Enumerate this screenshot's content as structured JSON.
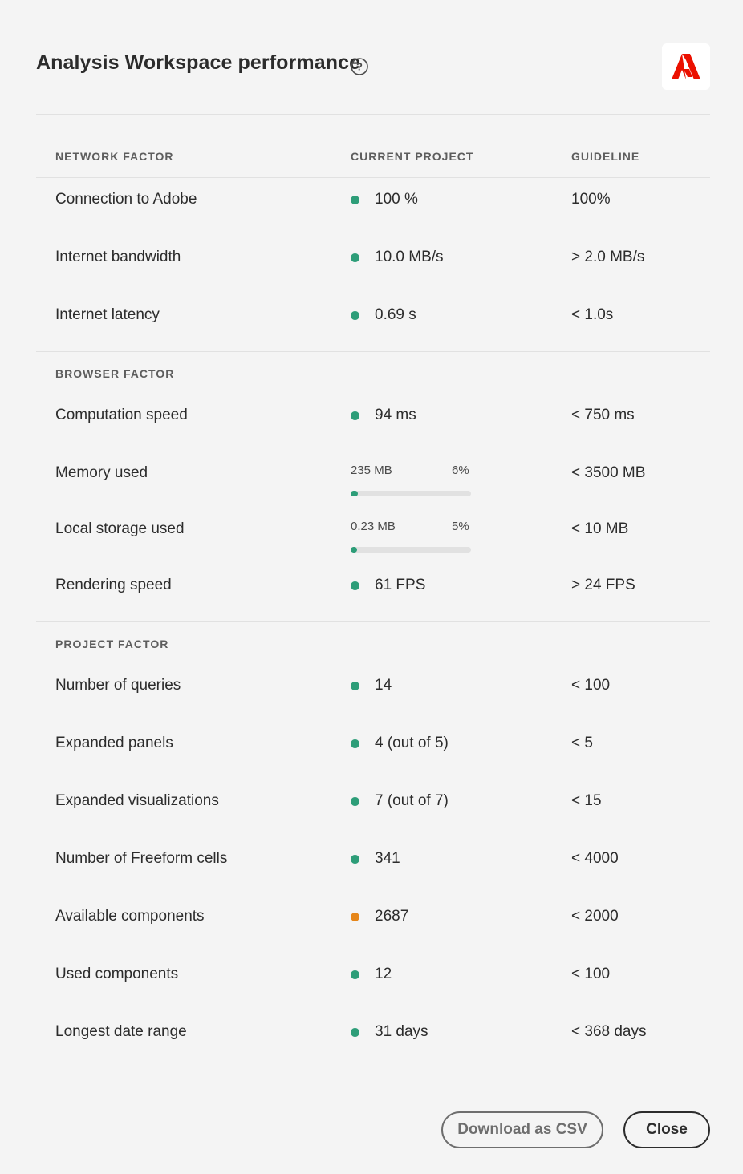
{
  "dialog": {
    "title": "Analysis Workspace performance",
    "help_icon": "question-circle-icon",
    "logo": "adobe-logo",
    "brand_color": "#eb1000"
  },
  "columns": {
    "factor": "NETWORK FACTOR",
    "current": "CURRENT PROJECT",
    "guideline": "GUIDELINE"
  },
  "status_colors": {
    "good": "#2d9d78",
    "warning": "#e68619"
  },
  "network": {
    "rows": [
      {
        "name": "Connection to Adobe",
        "value": "100 %",
        "status": "good",
        "guideline": "100%"
      },
      {
        "name": "Internet bandwidth",
        "value": "10.0 MB/s",
        "status": "good",
        "guideline": "> 2.0 MB/s"
      },
      {
        "name": "Internet latency",
        "value": "0.69 s",
        "status": "good",
        "guideline": "< 1.0s"
      }
    ]
  },
  "browser": {
    "title": "BROWSER FACTOR",
    "computation": {
      "name": "Computation speed",
      "value": "94 ms",
      "status": "good",
      "guideline": "< 750 ms"
    },
    "memory": {
      "name": "Memory used",
      "amount": "235 MB",
      "percent_label": "6%",
      "percent": 6,
      "guideline": "< 3500 MB"
    },
    "storage": {
      "name": "Local storage used",
      "amount": "0.23 MB",
      "percent_label": "5%",
      "percent": 5,
      "guideline": "< 10 MB"
    },
    "rendering": {
      "name": "Rendering speed",
      "value": "61 FPS",
      "status": "good",
      "guideline": "> 24 FPS"
    }
  },
  "project": {
    "title": "PROJECT FACTOR",
    "rows": [
      {
        "name": "Number of queries",
        "value": "14",
        "status": "good",
        "guideline": "< 100"
      },
      {
        "name": "Expanded panels",
        "value": "4 (out of 5)",
        "status": "good",
        "guideline": "< 5"
      },
      {
        "name": "Expanded visualizations",
        "value": "7 (out of 7)",
        "status": "good",
        "guideline": "< 15"
      },
      {
        "name": "Number of Freeform cells",
        "value": "341",
        "status": "good",
        "guideline": "< 4000"
      },
      {
        "name": "Available components",
        "value": "2687",
        "status": "warning",
        "guideline": "< 2000"
      },
      {
        "name": "Used components",
        "value": "12",
        "status": "good",
        "guideline": "< 100"
      },
      {
        "name": "Longest date range",
        "value": "31 days",
        "status": "good",
        "guideline": "< 368 days"
      }
    ]
  },
  "buttons": {
    "download": "Download as CSV",
    "close": "Close"
  }
}
